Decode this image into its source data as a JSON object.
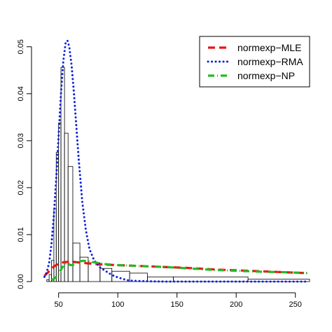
{
  "chart_data": {
    "type": "line",
    "title": "",
    "xlabel": "",
    "ylabel": "",
    "xlim": [
      36,
      262
    ],
    "ylim": [
      0,
      0.0525
    ],
    "x_ticks": [
      {
        "value": 50,
        "label": "50"
      },
      {
        "value": 100,
        "label": "100"
      },
      {
        "value": 150,
        "label": "150"
      },
      {
        "value": 200,
        "label": "200"
      },
      {
        "value": 250,
        "label": "250"
      }
    ],
    "y_ticks": [
      {
        "value": 0.0,
        "label": "0.00"
      },
      {
        "value": 0.01,
        "label": "0.01"
      },
      {
        "value": 0.02,
        "label": "0.02"
      },
      {
        "value": 0.03,
        "label": "0.03"
      },
      {
        "value": 0.04,
        "label": "0.04"
      },
      {
        "value": 0.05,
        "label": "0.05"
      }
    ],
    "histogram": {
      "bins": [
        {
          "x0": 40,
          "x1": 42,
          "y": 0.0004
        },
        {
          "x0": 42,
          "x1": 44,
          "y": 0.0015
        },
        {
          "x0": 44,
          "x1": 46,
          "y": 0.0045
        },
        {
          "x0": 46,
          "x1": 48,
          "y": 0.0155
        },
        {
          "x0": 48,
          "x1": 50,
          "y": 0.0275
        },
        {
          "x0": 50,
          "x1": 52,
          "y": 0.0338
        },
        {
          "x0": 52,
          "x1": 55,
          "y": 0.0456
        },
        {
          "x0": 55,
          "x1": 58,
          "y": 0.0316
        },
        {
          "x0": 58,
          "x1": 62,
          "y": 0.0245
        },
        {
          "x0": 62,
          "x1": 68,
          "y": 0.0082
        },
        {
          "x0": 68,
          "x1": 75,
          "y": 0.0052
        },
        {
          "x0": 75,
          "x1": 85,
          "y": 0.004
        },
        {
          "x0": 85,
          "x1": 95,
          "y": 0.0028
        },
        {
          "x0": 95,
          "x1": 110,
          "y": 0.0022
        },
        {
          "x0": 110,
          "x1": 125,
          "y": 0.0018
        },
        {
          "x0": 125,
          "x1": 147,
          "y": 0.001
        },
        {
          "x0": 147,
          "x1": 210,
          "y": 0.001
        },
        {
          "x0": 210,
          "x1": 262,
          "y": 0.0005
        }
      ]
    },
    "series": [
      {
        "name": "normexp−MLE",
        "color": "#ee1111",
        "style": "dashed",
        "x": [
          38,
          42,
          46,
          50,
          54,
          58,
          62,
          66,
          70,
          74,
          78,
          82,
          90,
          100,
          110,
          120,
          140,
          160,
          180,
          200,
          220,
          240,
          260
        ],
        "y": [
          0.0012,
          0.0022,
          0.0032,
          0.0038,
          0.0041,
          0.0042,
          0.0042,
          0.0041,
          0.004,
          0.0039,
          0.0038,
          0.0037,
          0.0036,
          0.0035,
          0.0034,
          0.0033,
          0.0031,
          0.0029,
          0.0026,
          0.0024,
          0.0022,
          0.002,
          0.0018
        ]
      },
      {
        "name": "normexp−RMA",
        "color": "#1122dd",
        "style": "dotted",
        "x": [
          38,
          40,
          42,
          44,
          46,
          48,
          50,
          52,
          54,
          56,
          57.5,
          59,
          61,
          63,
          65,
          67,
          70,
          73,
          76,
          80,
          85,
          90,
          95,
          100,
          105,
          110,
          120,
          140,
          160,
          200,
          260
        ],
        "y": [
          0.001,
          0.002,
          0.004,
          0.008,
          0.014,
          0.022,
          0.031,
          0.04,
          0.047,
          0.051,
          0.0513,
          0.05,
          0.046,
          0.04,
          0.033,
          0.026,
          0.017,
          0.011,
          0.007,
          0.0045,
          0.003,
          0.0022,
          0.0014,
          0.0009,
          0.0005,
          0.0002,
          0.0001,
          0.0,
          0.0,
          0.0,
          0.0
        ]
      },
      {
        "name": "normexp−NP",
        "color": "#22bb22",
        "style": "dotdash",
        "x": [
          44,
          46,
          48,
          50,
          52,
          54,
          56,
          58,
          60,
          62,
          64,
          66,
          68,
          70,
          72,
          74,
          76,
          80,
          85,
          90,
          100,
          110,
          120,
          140,
          160,
          180,
          200,
          220,
          240,
          260
        ],
        "y": [
          0.0003,
          0.0006,
          0.001,
          0.0016,
          0.0025,
          0.0034,
          0.0039,
          0.0038,
          0.0035,
          0.0035,
          0.0038,
          0.0041,
          0.0043,
          0.0044,
          0.0044,
          0.0043,
          0.0043,
          0.0041,
          0.0039,
          0.0037,
          0.0035,
          0.0034,
          0.0033,
          0.0031,
          0.0028,
          0.0025,
          0.0023,
          0.0021,
          0.002,
          0.0018
        ]
      }
    ],
    "legend": {
      "position": "top-right",
      "entries": [
        "normexp−MLE",
        "normexp−RMA",
        "normexp−NP"
      ]
    }
  }
}
